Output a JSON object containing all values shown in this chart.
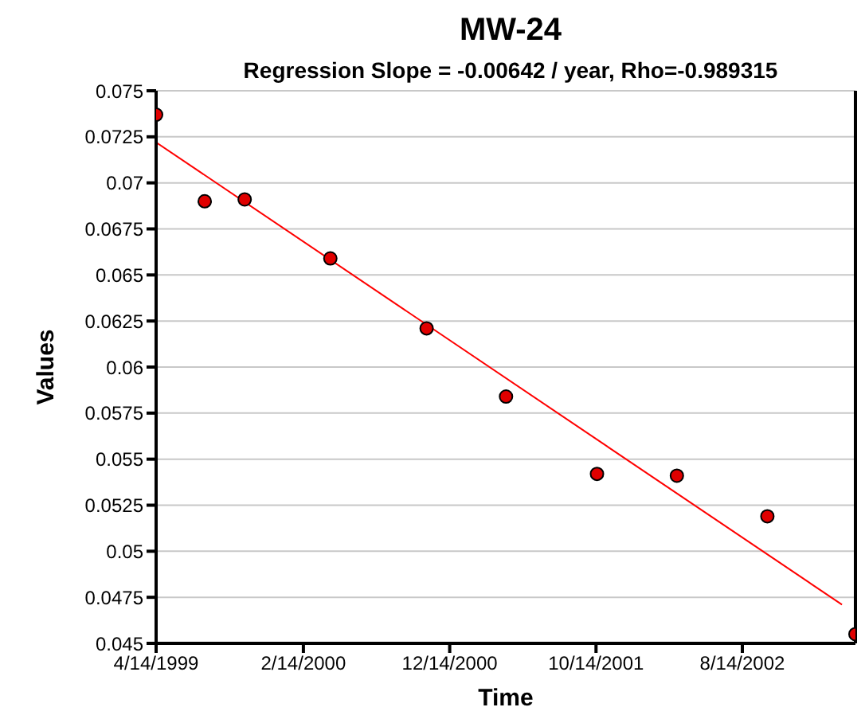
{
  "chart_data": {
    "type": "scatter",
    "title": "MW-24",
    "subtitle": "Regression Slope = -0.00642 / year, Rho=-0.989315",
    "xlabel": "Time",
    "ylabel": "Values",
    "x": [
      "1999-04-14",
      "1999-07-24",
      "1999-10-15",
      "2000-04-10",
      "2000-10-27",
      "2001-04-10",
      "2001-10-16",
      "2002-03-31",
      "2002-10-05",
      "2003-04-06"
    ],
    "series": [
      {
        "color": "#e00000",
        "marker": "circle",
        "values": [
          0.0737,
          0.069,
          0.0691,
          0.0659,
          0.0621,
          0.0584,
          0.0542,
          0.0541,
          0.0519,
          0.0455
        ]
      },
      {
        "type": "line",
        "color": "#ff0000",
        "marker": "none",
        "x": [
          "1999-04-14",
          "2003-03-09"
        ],
        "values": [
          0.0722,
          0.0471
        ]
      }
    ],
    "xlim": [
      "1999-04-14",
      "2003-04-06"
    ],
    "xticks": [
      {
        "value": "1999-04-14",
        "label": "4/14/1999"
      },
      {
        "value": "2000-02-14",
        "label": "2/14/2000"
      },
      {
        "value": "2000-12-14",
        "label": "12/14/2000"
      },
      {
        "value": "2001-10-14",
        "label": "10/14/2001"
      },
      {
        "value": "2002-08-14",
        "label": "8/14/2002"
      }
    ],
    "ylim": [
      0.045,
      0.075
    ],
    "yticks": [
      0.045,
      0.0475,
      0.05,
      0.0525,
      0.055,
      0.0575,
      0.06,
      0.0625,
      0.065,
      0.0675,
      0.07,
      0.0725,
      0.075
    ],
    "grid": "y",
    "legend": false
  }
}
